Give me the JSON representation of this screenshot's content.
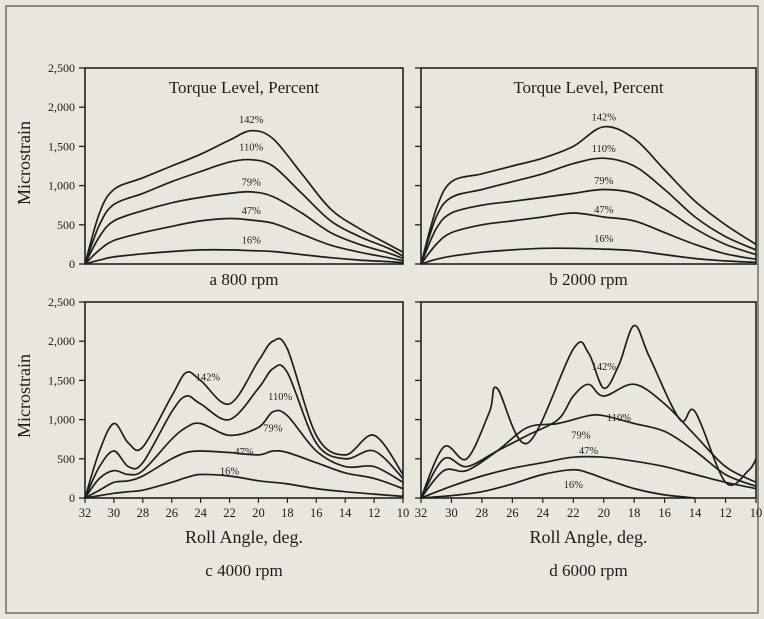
{
  "figure": {
    "y_axis_label": "Microstrain",
    "x_axis_label": "Roll Angle, deg."
  },
  "chart_data": [
    {
      "type": "line",
      "panel": "a",
      "caption": "a  800 rpm",
      "inset_title": "Torque Level, Percent",
      "ylabel": "Microstrain",
      "xlabel": "",
      "x_reversed": true,
      "xlim": [
        32,
        10
      ],
      "ylim": [
        0,
        2500
      ],
      "y_ticks": [
        "2,500",
        "2,000",
        "1,500",
        "1,000",
        "500",
        "0"
      ],
      "x_ticks": [],
      "series": [
        {
          "name": "142%",
          "x": [
            32,
            31,
            30,
            28,
            26,
            24,
            22,
            20.5,
            19,
            17,
            15,
            13,
            11,
            10
          ],
          "values": [
            0,
            650,
            950,
            1100,
            1250,
            1400,
            1580,
            1700,
            1600,
            1150,
            700,
            450,
            250,
            150
          ]
        },
        {
          "name": "110%",
          "x": [
            32,
            31,
            30,
            28,
            26,
            24,
            22,
            20.5,
            19,
            17,
            15,
            13,
            11,
            10
          ],
          "values": [
            0,
            500,
            760,
            900,
            1050,
            1180,
            1300,
            1330,
            1250,
            900,
            550,
            350,
            200,
            100
          ]
        },
        {
          "name": "79%",
          "x": [
            32,
            31,
            30,
            28,
            26,
            24,
            22,
            20.5,
            19,
            17,
            15,
            13,
            11,
            10
          ],
          "values": [
            0,
            350,
            550,
            680,
            780,
            850,
            900,
            920,
            860,
            650,
            400,
            250,
            140,
            70
          ]
        },
        {
          "name": "47%",
          "x": [
            32,
            31,
            30,
            28,
            26,
            24,
            22,
            20.5,
            19,
            17,
            15,
            13,
            11,
            10
          ],
          "values": [
            0,
            180,
            300,
            400,
            480,
            550,
            580,
            560,
            520,
            380,
            240,
            150,
            80,
            40
          ]
        },
        {
          "name": "16%",
          "x": [
            32,
            31,
            30,
            28,
            26,
            24,
            22,
            20.5,
            19,
            17,
            15,
            13,
            11,
            10
          ],
          "values": [
            0,
            50,
            90,
            130,
            160,
            180,
            180,
            170,
            160,
            120,
            80,
            50,
            30,
            15
          ]
        }
      ]
    },
    {
      "type": "line",
      "panel": "b",
      "caption": "b  2000 rpm",
      "inset_title": "Torque Level, Percent",
      "ylabel": "",
      "xlabel": "",
      "x_reversed": true,
      "xlim": [
        32,
        10
      ],
      "ylim": [
        0,
        2500
      ],
      "y_ticks": [],
      "x_ticks": [],
      "series": [
        {
          "name": "142%",
          "x": [
            32,
            31,
            30,
            28,
            26,
            24,
            22,
            20,
            18,
            16,
            14,
            12,
            10
          ],
          "values": [
            0,
            700,
            1050,
            1150,
            1250,
            1350,
            1500,
            1750,
            1600,
            1200,
            800,
            500,
            250
          ]
        },
        {
          "name": "110%",
          "x": [
            32,
            31,
            30,
            28,
            26,
            24,
            22,
            20,
            18,
            16,
            14,
            12,
            10
          ],
          "values": [
            0,
            600,
            850,
            950,
            1050,
            1150,
            1280,
            1350,
            1250,
            950,
            600,
            350,
            180
          ]
        },
        {
          "name": "79%",
          "x": [
            32,
            31,
            30,
            28,
            26,
            24,
            22,
            20,
            18,
            16,
            14,
            12,
            10
          ],
          "values": [
            0,
            450,
            650,
            750,
            800,
            850,
            900,
            950,
            900,
            700,
            450,
            250,
            120
          ]
        },
        {
          "name": "47%",
          "x": [
            32,
            31,
            30,
            28,
            26,
            24,
            22,
            20,
            18,
            16,
            14,
            12,
            10
          ],
          "values": [
            0,
            250,
            400,
            500,
            550,
            600,
            650,
            600,
            550,
            400,
            250,
            130,
            60
          ]
        },
        {
          "name": "16%",
          "x": [
            32,
            31,
            30,
            28,
            26,
            24,
            22,
            20,
            18,
            16,
            14,
            12,
            10
          ],
          "values": [
            0,
            60,
            100,
            150,
            180,
            200,
            200,
            190,
            170,
            120,
            70,
            40,
            20
          ]
        }
      ]
    },
    {
      "type": "line",
      "panel": "c",
      "caption": "c  4000 rpm",
      "inset_title": "",
      "ylabel": "Microstrain",
      "xlabel": "Roll Angle, deg.",
      "x_reversed": true,
      "xlim": [
        32,
        10
      ],
      "ylim": [
        0,
        2500
      ],
      "y_ticks": [
        "2,500",
        "2,000",
        "1,500",
        "1,000",
        "500",
        "0"
      ],
      "x_ticks": [
        "32",
        "30",
        "28",
        "26",
        "24",
        "22",
        "20",
        "18",
        "16",
        "14",
        "12",
        "10"
      ],
      "series": [
        {
          "name": "142%",
          "x": [
            32,
            31,
            30,
            29,
            28,
            26,
            25,
            24,
            22,
            20,
            19,
            18,
            16,
            14,
            12,
            10
          ],
          "values": [
            0,
            600,
            950,
            700,
            650,
            1300,
            1600,
            1500,
            1200,
            1750,
            2000,
            1900,
            800,
            550,
            800,
            300
          ]
        },
        {
          "name": "110%",
          "x": [
            32,
            31,
            30,
            29,
            28,
            26,
            25,
            24,
            22,
            20,
            19,
            18,
            16,
            14,
            12,
            10
          ],
          "values": [
            0,
            400,
            600,
            400,
            450,
            1100,
            1300,
            1200,
            1000,
            1400,
            1650,
            1600,
            700,
            500,
            600,
            250
          ]
        },
        {
          "name": "79%",
          "x": [
            32,
            31,
            30,
            29,
            28,
            26,
            25,
            24,
            22,
            20,
            19,
            18,
            16,
            14,
            12,
            10
          ],
          "values": [
            0,
            250,
            350,
            300,
            350,
            750,
            900,
            950,
            800,
            900,
            1100,
            1050,
            600,
            400,
            400,
            200
          ]
        },
        {
          "name": "47%",
          "x": [
            32,
            31,
            30,
            29,
            28,
            26,
            25,
            24,
            22,
            20,
            19,
            18,
            16,
            14,
            12,
            10
          ],
          "values": [
            0,
            100,
            200,
            220,
            280,
            500,
            580,
            600,
            580,
            550,
            600,
            580,
            450,
            320,
            250,
            120
          ]
        },
        {
          "name": "16%",
          "x": [
            32,
            31,
            30,
            29,
            28,
            26,
            25,
            24,
            22,
            20,
            19,
            18,
            16,
            14,
            12,
            10
          ],
          "values": [
            0,
            30,
            60,
            80,
            100,
            200,
            260,
            300,
            280,
            220,
            200,
            180,
            120,
            80,
            50,
            20
          ]
        }
      ]
    },
    {
      "type": "line",
      "panel": "d",
      "caption": "d  6000 rpm",
      "inset_title": "",
      "ylabel": "",
      "xlabel": "Roll Angle, deg.",
      "x_reversed": true,
      "xlim": [
        32,
        10
      ],
      "ylim": [
        0,
        2500
      ],
      "y_ticks": [],
      "x_ticks": [
        "32",
        "30",
        "28",
        "26",
        "24",
        "22",
        "20",
        "18",
        "16",
        "14",
        "12",
        "10"
      ],
      "series": [
        {
          "name": "142%",
          "x": [
            32,
            30.5,
            29,
            27.5,
            27,
            25,
            22,
            21,
            20,
            19,
            18,
            17,
            15,
            14,
            12,
            10.5,
            10
          ],
          "values": [
            0,
            650,
            500,
            1100,
            1400,
            700,
            1900,
            1850,
            1400,
            1700,
            2200,
            1800,
            1000,
            1100,
            200,
            350,
            500
          ]
        },
        {
          "name": "110%",
          "x": [
            32,
            30.5,
            29,
            27,
            25,
            23,
            22,
            21,
            20,
            18,
            16,
            14,
            12,
            10
          ],
          "values": [
            0,
            500,
            400,
            600,
            800,
            1000,
            1300,
            1450,
            1300,
            1450,
            1200,
            800,
            400,
            200
          ]
        },
        {
          "name": "79%",
          "x": [
            32,
            30.5,
            29,
            27,
            25,
            23,
            21,
            20,
            18,
            16,
            14,
            12,
            10
          ],
          "values": [
            0,
            350,
            350,
            600,
            900,
            950,
            1050,
            1050,
            950,
            850,
            600,
            300,
            150
          ]
        },
        {
          "name": "47%",
          "x": [
            32,
            30,
            28,
            26,
            24,
            22,
            20,
            18,
            16,
            14,
            12,
            10
          ],
          "values": [
            0,
            150,
            280,
            380,
            450,
            520,
            520,
            470,
            400,
            300,
            200,
            120
          ]
        },
        {
          "name": "16%",
          "x": [
            32,
            30,
            28,
            26,
            24,
            22,
            21,
            20,
            18,
            16,
            14
          ],
          "values": [
            0,
            30,
            80,
            180,
            300,
            360,
            320,
            250,
            120,
            40,
            0
          ]
        }
      ]
    }
  ]
}
